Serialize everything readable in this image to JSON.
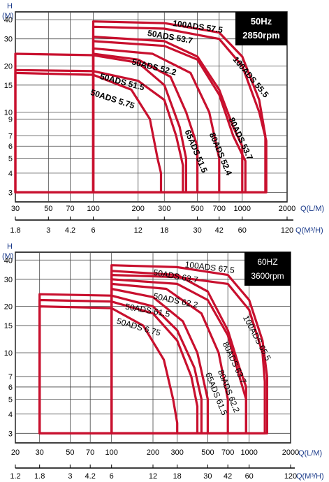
{
  "chart_data": [
    {
      "type": "line",
      "x_scale": "log",
      "y_scale": "log",
      "xlim": [
        30,
        2000
      ],
      "ylim": [
        2.6,
        45
      ],
      "xlabel": "Q(L/M)",
      "x2label": "Q(M³/H)",
      "ylabel": "H\n(M)",
      "y_ticks": [
        "40",
        "30",
        "20",
        "15",
        "10",
        "9",
        "7",
        "6",
        "5",
        "4",
        "3"
      ],
      "y_tick_values": [
        40,
        30,
        20,
        15,
        10,
        9,
        7,
        6,
        5,
        4,
        3
      ],
      "x_ticks": [
        "30",
        "50",
        "70",
        "100",
        "200",
        "300",
        "500",
        "700",
        "1000",
        "2000"
      ],
      "x_tick_values": [
        30,
        50,
        70,
        100,
        200,
        300,
        500,
        700,
        1000,
        2000
      ],
      "x2_ticks": [
        "1.8",
        "3",
        "4.2",
        "6",
        "12",
        "18",
        "30",
        "42",
        "60",
        "120"
      ],
      "x2_tick_values": [
        1.8,
        3,
        4.2,
        6,
        12,
        18,
        30,
        42,
        60,
        120
      ],
      "badge": {
        "line1": "50Hz",
        "line2": "2850rpm"
      },
      "title_weight": "bold",
      "series_color": "#c8102e",
      "series": [
        {
          "name": "100ADS 57.5",
          "x": [
            100,
            300,
            700,
            1000,
            1300,
            1430
          ],
          "y": [
            39,
            38,
            33,
            23,
            12,
            7
          ]
        },
        {
          "name": "50ADS 53.7",
          "x": [
            100,
            300,
            500,
            700,
            870,
            1000
          ],
          "y": [
            31,
            29,
            23,
            14,
            8,
            6
          ]
        },
        {
          "name": "100ADS 55.5",
          "x": [
            100,
            300,
            700,
            1000,
            1300,
            1450
          ],
          "y": [
            36,
            35,
            30,
            20,
            10,
            6.5
          ]
        },
        {
          "name": "80ADS 53.7",
          "x": [
            100,
            300,
            500,
            700,
            870,
            1050
          ],
          "y": [
            29,
            27,
            22,
            13,
            7,
            4.8
          ]
        },
        {
          "name": "50ADS 52.2",
          "x": [
            30,
            100,
            200,
            300,
            380,
            420
          ],
          "y": [
            24,
            23.5,
            21,
            15,
            8,
            5
          ]
        },
        {
          "name": "50ADS 51.5",
          "x": [
            30,
            100,
            200,
            300,
            360,
            400
          ],
          "y": [
            18.8,
            18.5,
            16,
            12,
            7,
            4.5
          ]
        },
        {
          "name": "50ADS 5.75",
          "x": [
            30,
            100,
            180,
            240,
            270,
            285
          ],
          "y": [
            18,
            17.5,
            14,
            9,
            5,
            4
          ]
        },
        {
          "name": "65ADS 51.5",
          "x": [
            100,
            200,
            330,
            420,
            500
          ],
          "y": [
            24,
            22,
            17,
            10,
            6
          ]
        },
        {
          "name": "80ADS 52.4",
          "x": [
            100,
            250,
            450,
            600,
            700
          ],
          "y": [
            26,
            24,
            18,
            10,
            5
          ]
        }
      ],
      "labels": [
        {
          "text": "100ADS 57.5",
          "x": 340,
          "y": 36.5,
          "rotate": 8
        },
        {
          "text": "50ADS 53.7",
          "x": 230,
          "y": 31.5,
          "rotate": 10
        },
        {
          "text": "100ADS 55.5",
          "x": 860,
          "y": 22,
          "rotate": 50
        },
        {
          "text": "80ADS 53.7",
          "x": 810,
          "y": 9,
          "rotate": 65
        },
        {
          "text": "50ADS 52.2",
          "x": 180,
          "y": 20.5,
          "rotate": 14
        },
        {
          "text": "50ADS 51.5",
          "x": 110,
          "y": 16.5,
          "rotate": 15
        },
        {
          "text": "50ADS 5.75",
          "x": 95,
          "y": 13,
          "rotate": 18
        },
        {
          "text": "65ADS 51.5",
          "x": 410,
          "y": 7.5,
          "rotate": 67
        },
        {
          "text": "80ADS 52.4",
          "x": 600,
          "y": 7.2,
          "rotate": 67
        }
      ]
    },
    {
      "type": "line",
      "x_scale": "log",
      "y_scale": "log",
      "xlim": [
        20,
        2000
      ],
      "ylim": [
        2.6,
        45
      ],
      "xlabel": "Q(L/M)",
      "x2label": "Q(M³/H)",
      "ylabel": "H\n(M)",
      "y_ticks": [
        "40",
        "30",
        "20",
        "15",
        "10",
        "7",
        "6",
        "5",
        "4",
        "3"
      ],
      "y_tick_values": [
        40,
        30,
        20,
        15,
        10,
        7,
        6,
        5,
        4,
        3
      ],
      "x_ticks": [
        "20",
        "30",
        "50",
        "70",
        "100",
        "200",
        "300",
        "500",
        "700",
        "1000",
        "2000"
      ],
      "x_tick_values": [
        20,
        30,
        50,
        70,
        100,
        200,
        300,
        500,
        700,
        1000,
        2000
      ],
      "x2_ticks": [
        "1.2",
        "1.8",
        "3",
        "4.2",
        "6",
        "12",
        "18",
        "30",
        "42",
        "60",
        "120"
      ],
      "x2_tick_values": [
        1.2,
        1.8,
        3,
        4.2,
        6,
        12,
        18,
        30,
        42,
        60,
        120
      ],
      "badge": {
        "line1": "60HZ",
        "line2": "3600rpm"
      },
      "title_weight": "normal",
      "series_color": "#c8102e",
      "series": [
        {
          "name": "100ADS 67.5",
          "x": [
            100,
            300,
            700,
            1000,
            1250,
            1350
          ],
          "y": [
            37,
            36,
            32,
            22,
            12,
            7
          ]
        },
        {
          "name": "50ADS 63.7",
          "x": [
            100,
            300,
            500,
            700,
            850,
            950
          ],
          "y": [
            34,
            32,
            25,
            14,
            8,
            6
          ]
        },
        {
          "name": "100ADS 65.5",
          "x": [
            100,
            300,
            700,
            1000,
            1250,
            1300
          ],
          "y": [
            32,
            31,
            28,
            19,
            10,
            6.5
          ]
        },
        {
          "name": "80ADS 63.7",
          "x": [
            100,
            300,
            500,
            700,
            850,
            950
          ],
          "y": [
            30,
            28,
            22,
            13,
            7,
            5
          ]
        },
        {
          "name": "50ADS 62.2",
          "x": [
            30,
            100,
            200,
            300,
            400,
            450
          ],
          "y": [
            24,
            23.5,
            20,
            14,
            8,
            5
          ]
        },
        {
          "name": "50ADS 61.5",
          "x": [
            30,
            100,
            200,
            300,
            380,
            420
          ],
          "y": [
            22,
            21.5,
            18,
            12,
            7,
            4.5
          ]
        },
        {
          "name": "50ADS 6.75",
          "x": [
            30,
            100,
            170,
            240,
            280,
            300
          ],
          "y": [
            20,
            19.5,
            15,
            9,
            5,
            3.5
          ]
        },
        {
          "name": "65ADS 61.5",
          "x": [
            100,
            200,
            330,
            420,
            500
          ],
          "y": [
            26,
            23,
            16,
            10,
            5
          ]
        },
        {
          "name": "80ADS 62.2",
          "x": [
            100,
            250,
            450,
            600,
            700
          ],
          "y": [
            28,
            26,
            18,
            10,
            5
          ]
        }
      ],
      "labels": [
        {
          "text": "100ADS 67.5",
          "x": 340,
          "y": 36,
          "rotate": 7
        },
        {
          "text": "50ADS 63.7",
          "x": 200,
          "y": 32,
          "rotate": 10
        },
        {
          "text": "100ADS 65.5",
          "x": 900,
          "y": 17,
          "rotate": 62
        },
        {
          "text": "80ADS 63.7",
          "x": 640,
          "y": 11.5,
          "rotate": 65
        },
        {
          "text": "50ADS 62.2",
          "x": 200,
          "y": 22.5,
          "rotate": 12
        },
        {
          "text": "50ADS 61.5",
          "x": 125,
          "y": 19.2,
          "rotate": 10
        },
        {
          "text": "50ADS 6.75",
          "x": 108,
          "y": 15.5,
          "rotate": 16
        },
        {
          "text": "65ADS 61.5",
          "x": 480,
          "y": 7.3,
          "rotate": 68
        },
        {
          "text": "80ADS 62.2",
          "x": 590,
          "y": 7.6,
          "rotate": 68
        }
      ]
    }
  ]
}
